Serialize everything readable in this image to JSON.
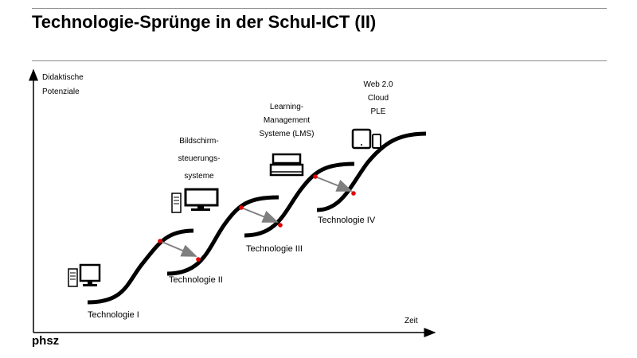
{
  "title": "Technologie-Sprünge in der Schul-ICT (II)",
  "logo": "phsz",
  "axes": {
    "y_label_line1": "Didaktische",
    "y_label_line2": "Potenziale",
    "x_label": "Zeit"
  },
  "stages": [
    {
      "label": "Technologie I",
      "icon": "desktop-pc-icon"
    },
    {
      "label": "Technologie II",
      "icon": "desktop-monitor-icon",
      "caption": [
        "Bildschirm-",
        "steuerungs-",
        "systeme"
      ]
    },
    {
      "label": "Technologie III",
      "icon": "laptop-icon",
      "caption": [
        "Learning-",
        "Management",
        "Systeme (LMS)"
      ]
    },
    {
      "label": "Technologie IV",
      "icon": "tablet-phone-icon",
      "caption": [
        "Web 2.0",
        "Cloud",
        "PLE"
      ]
    }
  ],
  "colors": {
    "curve": "#000000",
    "marker": "#e00000",
    "arrow": "#7f7f7f"
  }
}
